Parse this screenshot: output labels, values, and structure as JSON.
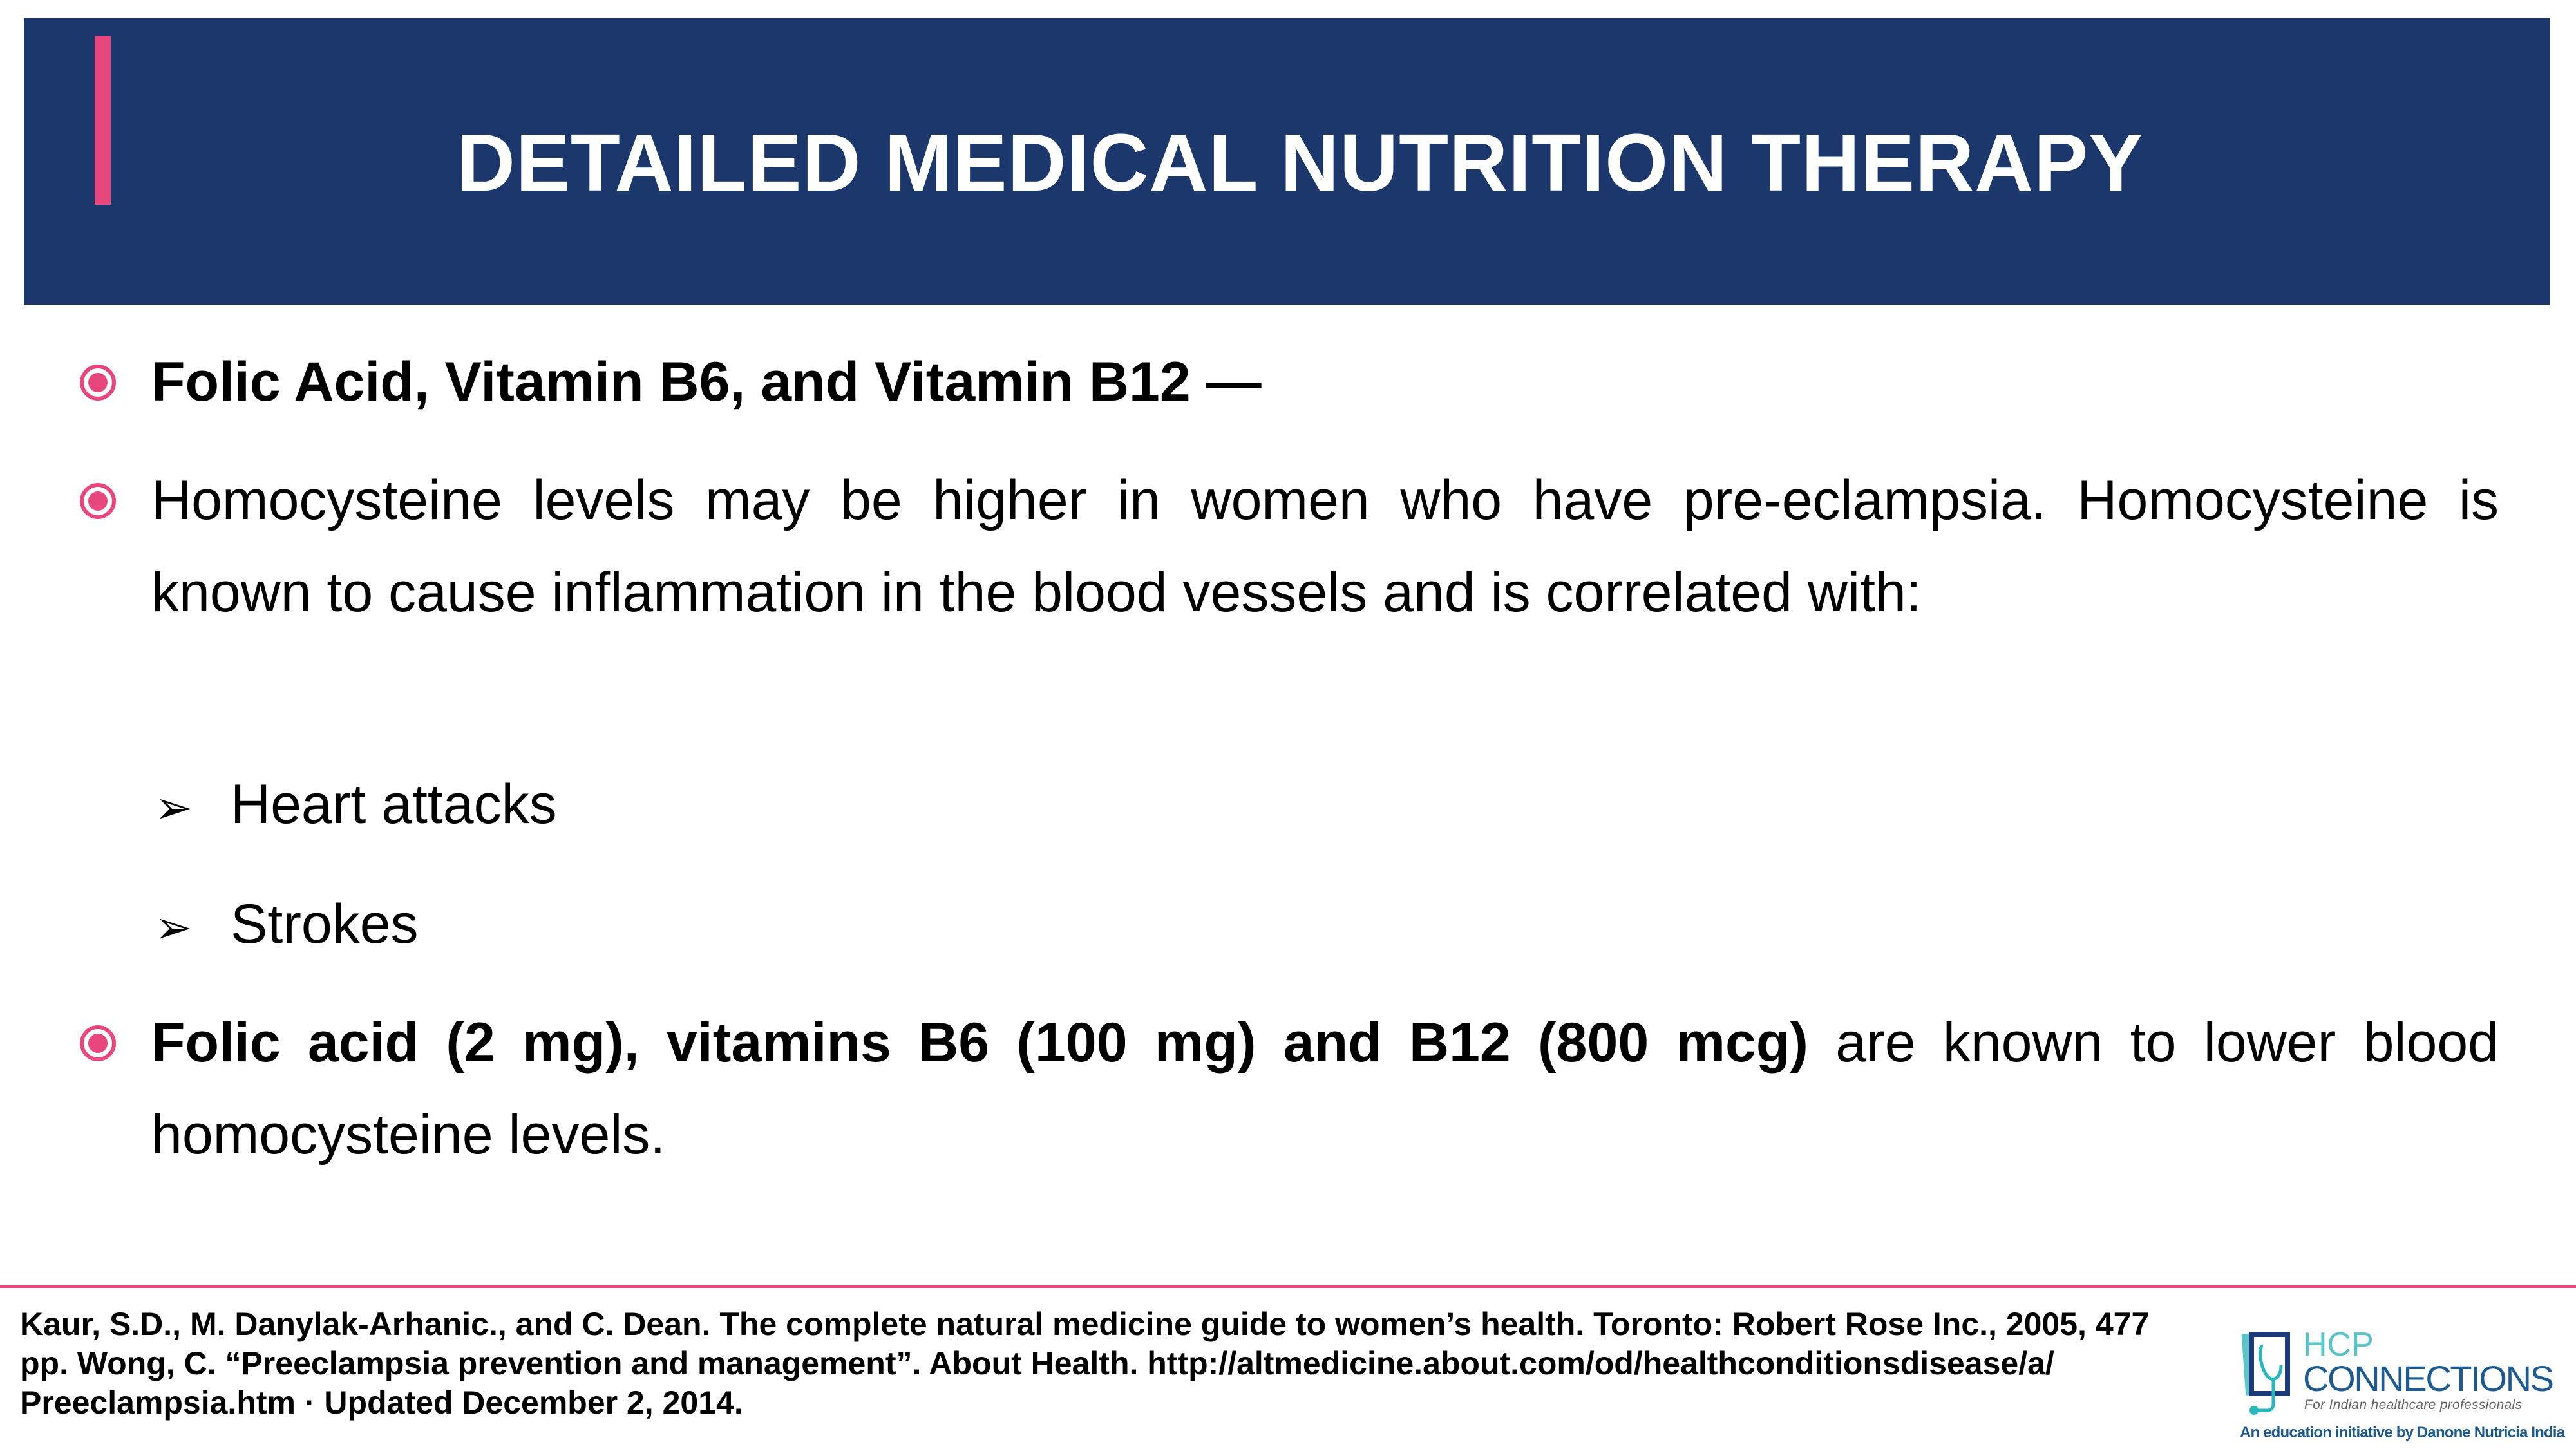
{
  "header": {
    "title": "DETAILED MEDICAL NUTRITION THERAPY"
  },
  "bullets": [
    {
      "bold": "Folic Acid, Vitamin B6, and Vitamin B12 —",
      "text": ""
    },
    {
      "bold": "",
      "text": "Homocysteine levels may be higher in women who have pre-eclampsia. Homocysteine is known to cause inflammation in the blood vessels and is correlated with:"
    },
    {
      "bold": "Folic acid (2 mg), vitamins B6 (100 mg) and B12 (800 mcg)",
      "text": " are known to lower blood homocysteine levels."
    }
  ],
  "sub_bullets": [
    "Heart attacks",
    "Strokes"
  ],
  "icons": {
    "bullet": "target-circle-icon",
    "sub_bullet": "arrowhead-icon"
  },
  "footer": {
    "reference": "Kaur, S.D., M. Danylak-Arhanic., and C. Dean. The complete natural medicine guide to women’s health. Toronto: Robert Rose Inc., 2005, 477 pp. Wong, C. “Preeclampsia prevention and management”. About Health. http://altmedicine.about.com/od/healthconditionsdisease/a/ Preeclampsia.htm · Updated December 2, 2014."
  },
  "logo": {
    "line1": "HCP",
    "line2": "CONNECTIONS",
    "tagline": "For Indian healthcare professionals",
    "initiative": "An education initiative by Danone Nutricia India"
  },
  "colors": {
    "header_bg": "#1b376b",
    "accent": "#e8477d",
    "logo_teal": "#5bc4c8",
    "logo_blue": "#1d5a91"
  }
}
